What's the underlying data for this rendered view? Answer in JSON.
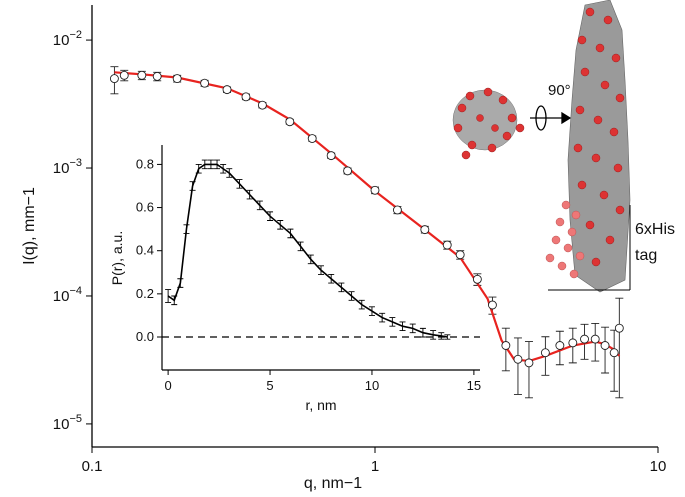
{
  "chart_data": [
    {
      "type": "scatter",
      "xlabel": "q, nm−1",
      "ylabel": "I(q), mm−1",
      "log_x": true,
      "log_y": true,
      "xlim": [
        0.1,
        10
      ],
      "ylim": [
        6.6e-06,
        0.0188
      ],
      "xticks": [
        0.1,
        1,
        10
      ],
      "yticks": [
        {
          "value": 0.01,
          "label": "10−2"
        },
        {
          "value": 0.001,
          "label": "10−3"
        },
        {
          "value": 0.0001,
          "label": "10−4"
        },
        {
          "value": 1e-05,
          "label": "10−5"
        }
      ],
      "data": {
        "color": "#222222",
        "x": [
          0.12,
          0.13,
          0.15,
          0.17,
          0.2,
          0.25,
          0.3,
          0.35,
          0.4,
          0.5,
          0.6,
          0.7,
          0.8,
          1.0,
          1.2,
          1.5,
          1.8,
          2.0,
          2.3,
          2.6,
          2.9,
          3.2,
          3.5,
          4.0,
          4.5,
          5.0,
          5.5,
          6.0,
          6.5,
          7.0,
          7.3
        ],
        "values": [
          0.005,
          0.0053,
          0.0053,
          0.0052,
          0.005,
          0.0046,
          0.0041,
          0.0036,
          0.0031,
          0.0023,
          0.0017,
          0.00125,
          0.00095,
          0.00067,
          0.00047,
          0.00033,
          0.00025,
          0.00021,
          0.000135,
          8.5e-05,
          4.1e-05,
          3.2e-05,
          3e-05,
          3.6e-05,
          4.1e-05,
          4.3e-05,
          4.6e-05,
          4.6e-05,
          4.1e-05,
          3.6e-05,
          5.6e-05
        ],
        "errors": [
          0.0012,
          0.0005,
          0.0004,
          0.0004,
          0.0003,
          0.00025,
          0.0002,
          0.00018,
          0.00015,
          0.0001,
          8e-05,
          6e-05,
          5e-05,
          4e-05,
          3e-05,
          2e-05,
          1.8e-05,
          1.6e-05,
          1.4e-05,
          1.3e-05,
          1.5e-05,
          1.5e-05,
          1.4e-05,
          1.2e-05,
          1.2e-05,
          1.3e-05,
          1.4e-05,
          1.5e-05,
          1.6e-05,
          1.8e-05,
          4e-05
        ]
      },
      "fit": {
        "color": "#e8231f",
        "x": [
          0.12,
          0.15,
          0.2,
          0.3,
          0.4,
          0.5,
          0.7,
          1.0,
          1.5,
          2.0,
          2.5,
          2.8,
          3.1,
          3.5,
          4.0,
          5.0,
          6.0,
          6.5,
          7.0,
          7.3
        ],
        "values": [
          0.0056,
          0.0054,
          0.0051,
          0.0042,
          0.0032,
          0.0024,
          0.0013,
          0.00066,
          0.00033,
          0.0002,
          9.5e-05,
          4.5e-05,
          3.2e-05,
          3.1e-05,
          3.4e-05,
          4.1e-05,
          4.4e-05,
          4.2e-05,
          3.8e-05,
          3.4e-05
        ]
      },
      "annotations": [
        "90°",
        "6xHis",
        "tag"
      ]
    },
    {
      "type": "line",
      "xlabel": "r, nm",
      "ylabel": "P(r), a.u.",
      "xlim": [
        -0.3,
        15.3
      ],
      "ylim": [
        -0.153,
        0.89
      ],
      "xticks": [
        0,
        5,
        10,
        15
      ],
      "yticks": [
        {
          "value": 0,
          "label": "0.0"
        },
        0.2,
        0.4,
        0.6,
        0.8
      ],
      "zero_line": true,
      "color": "#000000",
      "x": [
        0,
        0.3,
        0.6,
        0.9,
        1.2,
        1.5,
        1.8,
        2.1,
        2.4,
        2.7,
        3.0,
        3.5,
        4.0,
        4.5,
        5.0,
        5.5,
        6.0,
        6.5,
        7.0,
        7.5,
        8.0,
        8.5,
        9.0,
        9.5,
        10.0,
        10.5,
        11.0,
        11.5,
        12.0,
        12.5,
        13.0,
        13.4,
        13.7
      ],
      "values": [
        0.19,
        0.17,
        0.25,
        0.5,
        0.7,
        0.78,
        0.8,
        0.8,
        0.8,
        0.78,
        0.76,
        0.71,
        0.66,
        0.61,
        0.56,
        0.52,
        0.48,
        0.42,
        0.36,
        0.31,
        0.27,
        0.23,
        0.19,
        0.15,
        0.12,
        0.09,
        0.07,
        0.05,
        0.04,
        0.02,
        0.01,
        0.005,
        0.0
      ],
      "errors": [
        0.03,
        0.02,
        0.02,
        0.02,
        0.02,
        0.02,
        0.02,
        0.02,
        0.02,
        0.02,
        0.02,
        0.02,
        0.02,
        0.02,
        0.02,
        0.02,
        0.02,
        0.02,
        0.02,
        0.02,
        0.02,
        0.02,
        0.02,
        0.02,
        0.02,
        0.02,
        0.02,
        0.02,
        0.02,
        0.02,
        0.02,
        0.015,
        0.01
      ]
    }
  ]
}
